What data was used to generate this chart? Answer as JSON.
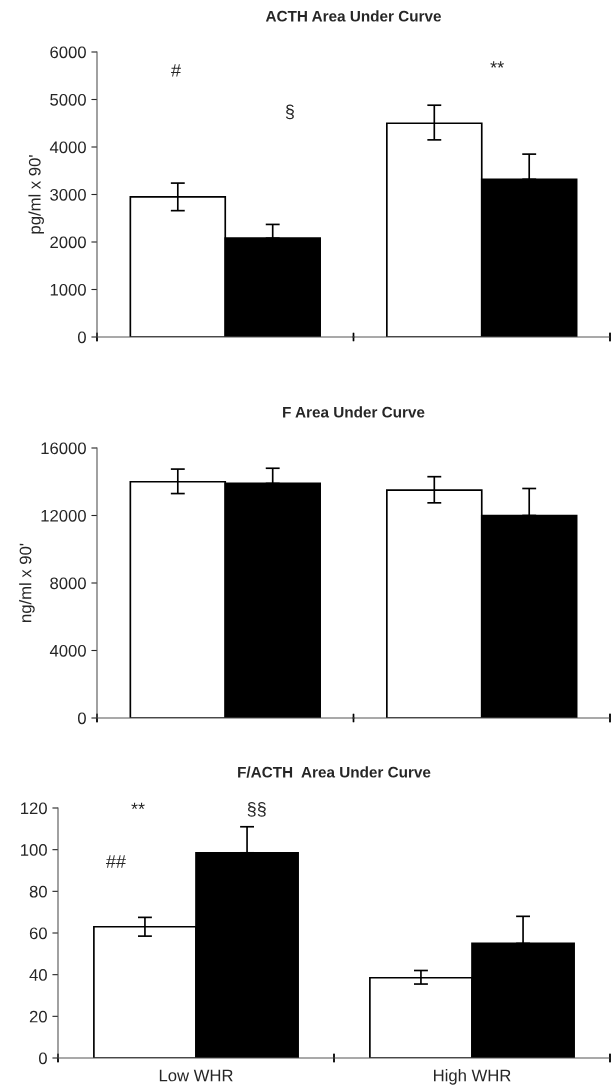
{
  "chart_data": [
    {
      "type": "bar",
      "title": "ACTH Area Under Curve",
      "ylabel": "pg/ml x 90'",
      "categories": [
        null,
        null
      ],
      "ylim": [
        0,
        6000
      ],
      "yticks": [
        0,
        1000,
        2000,
        3000,
        4000,
        5000,
        6000
      ],
      "grid": false,
      "legend": false,
      "series": [
        {
          "color": "#ffffff",
          "values": [
            2950,
            4500
          ],
          "errors": [
            [
              2660,
              3240
            ],
            [
              4150,
              4880
            ]
          ]
        },
        {
          "color": "#000000",
          "values": [
            2080,
            3320
          ],
          "errors": [
            [
              2080,
              2370
            ],
            [
              3320,
              3850
            ]
          ]
        }
      ],
      "annotations": [
        "#",
        "§",
        "**"
      ]
    },
    {
      "type": "bar",
      "title": "F Area Under Curve",
      "ylabel": "ng/ml x 90'",
      "categories": [
        null,
        null
      ],
      "ylim": [
        0,
        16000
      ],
      "yticks": [
        0,
        4000,
        8000,
        12000,
        16000
      ],
      "grid": false,
      "legend": false,
      "series": [
        {
          "color": "#ffffff",
          "values": [
            14000,
            13500
          ],
          "errors": [
            [
              13300,
              14750
            ],
            [
              12750,
              14300
            ]
          ]
        },
        {
          "color": "#000000",
          "values": [
            13900,
            12000
          ],
          "errors": [
            [
              13900,
              14800
            ],
            [
              12000,
              13600
            ]
          ]
        }
      ]
    },
    {
      "type": "bar",
      "title": "F/ACTH  Area Under Curve",
      "categories": [
        "Low WHR",
        "High WHR"
      ],
      "ylim": [
        0,
        120
      ],
      "yticks": [
        0,
        20,
        40,
        60,
        80,
        100,
        120
      ],
      "grid": false,
      "legend": false,
      "series": [
        {
          "color": "#ffffff",
          "values": [
            63,
            38.5
          ],
          "errors": [
            [
              58.5,
              67.5
            ],
            [
              35.5,
              42
            ]
          ]
        },
        {
          "color": "#000000",
          "values": [
            98.5,
            55
          ],
          "errors": [
            [
              98.5,
              111
            ],
            [
              55,
              68
            ]
          ]
        }
      ],
      "annotations": [
        "**",
        "§§",
        "##"
      ]
    }
  ]
}
